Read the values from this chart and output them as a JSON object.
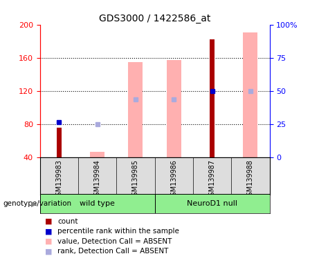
{
  "title": "GDS3000 / 1422586_at",
  "samples": [
    "GSM139983",
    "GSM139984",
    "GSM139985",
    "GSM139986",
    "GSM139987",
    "GSM139988"
  ],
  "ylim_left": [
    40,
    200
  ],
  "ylim_right": [
    0,
    100
  ],
  "yticks_left": [
    40,
    80,
    120,
    160,
    200
  ],
  "yticks_right": [
    0,
    25,
    50,
    75,
    100
  ],
  "count_color": "#AA0000",
  "rank_color": "#0000CC",
  "value_absent_color": "#FFB0B0",
  "rank_absent_color": "#AAAADD",
  "count_values": [
    76,
    null,
    null,
    null,
    183,
    null
  ],
  "rank_values_pct": [
    27,
    null,
    null,
    null,
    50,
    null
  ],
  "value_absent": [
    null,
    47,
    155,
    158,
    null,
    191
  ],
  "rank_absent_pct": [
    null,
    25,
    44,
    44,
    null,
    50
  ],
  "group1_label": "wild type",
  "group2_label": "NeuroD1 null",
  "group1_color": "#90EE90",
  "group2_color": "#90EE90",
  "genotype_label": "genotype/variation",
  "legend_labels": [
    "count",
    "percentile rank within the sample",
    "value, Detection Call = ABSENT",
    "rank, Detection Call = ABSENT"
  ],
  "legend_colors": [
    "#AA0000",
    "#0000CC",
    "#FFB0B0",
    "#AAAADD"
  ],
  "legend_marker_sizes": [
    8,
    8,
    8,
    8
  ]
}
